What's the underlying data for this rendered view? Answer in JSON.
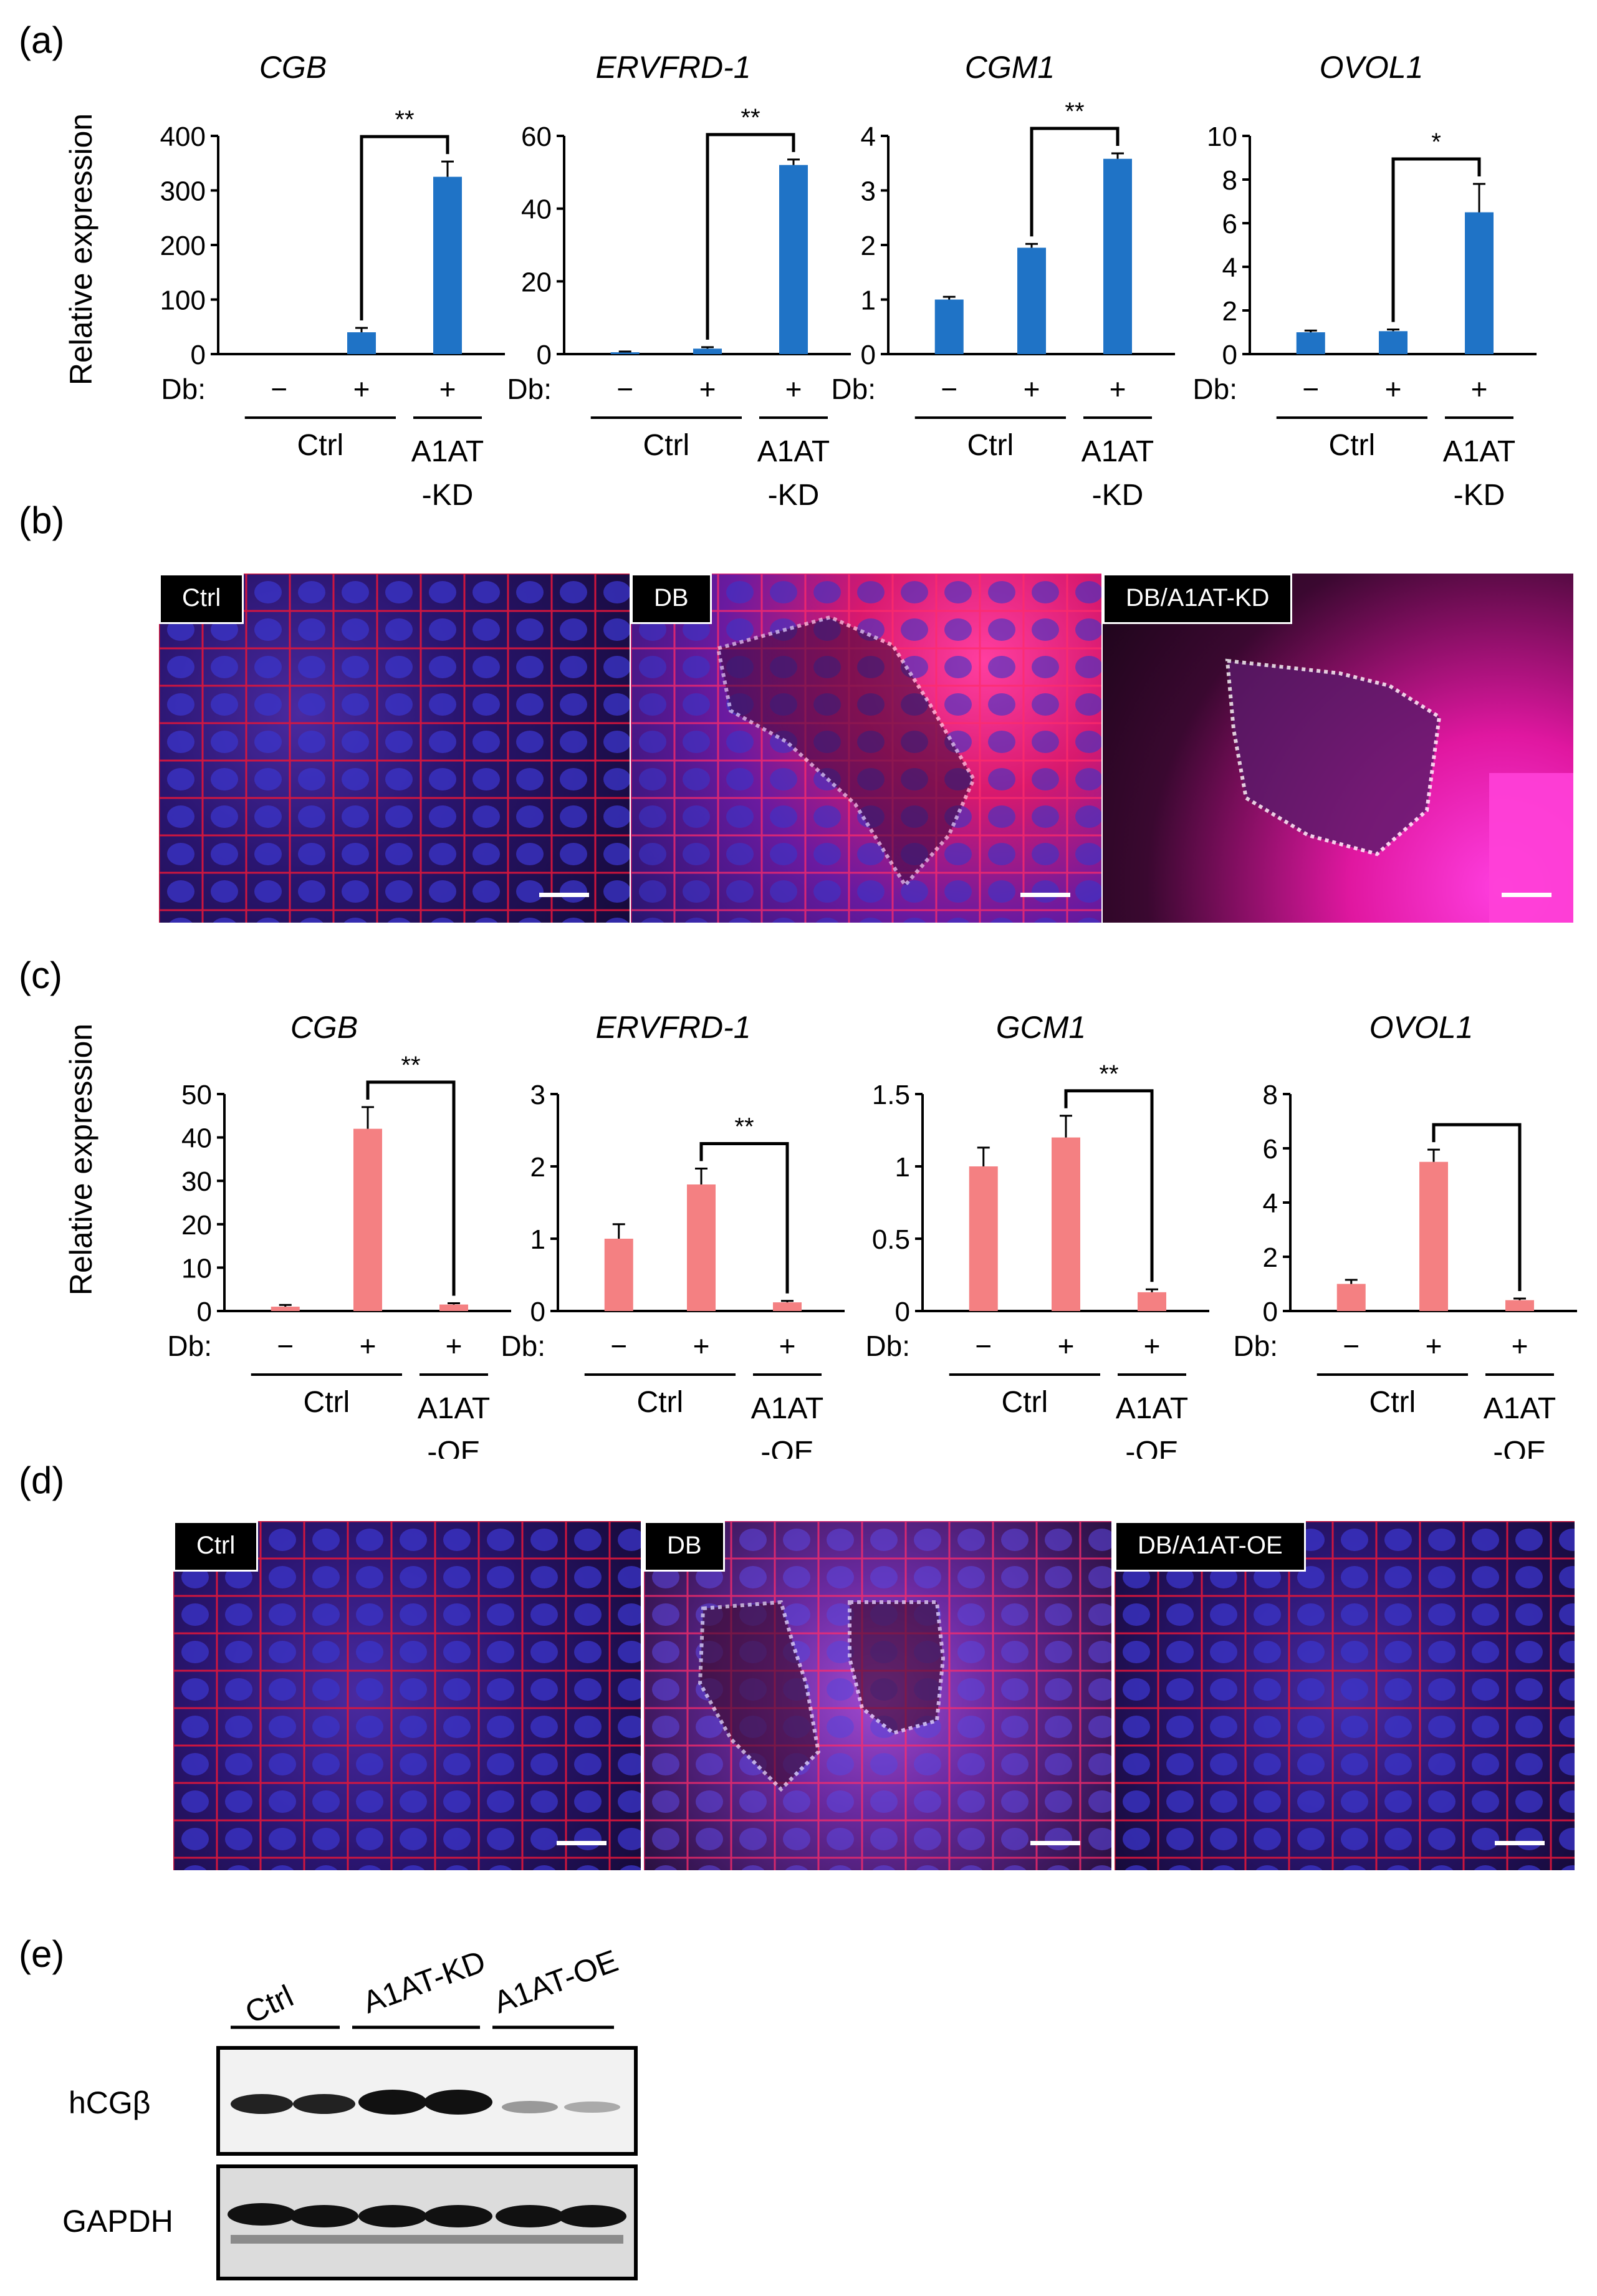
{
  "figure": {
    "panels": {
      "a": "(a)",
      "b": "(b)",
      "c": "(c)",
      "d": "(d)",
      "e": "(e)"
    },
    "a": {
      "ylabel": "Relative expression",
      "db_label": "Db:",
      "conditions": [
        "−",
        "+",
        "+"
      ],
      "group1": "Ctrl",
      "group2_line1": "A1AT",
      "group2_line2": "-KD",
      "bar_color": "#1f73c6"
    },
    "b": {
      "labels": [
        "Ctrl",
        "DB",
        "DB/A1AT-KD"
      ]
    },
    "c": {
      "ylabel": "Relative expression",
      "db_label": "Db:",
      "conditions": [
        "−",
        "+",
        "+"
      ],
      "group1": "Ctrl",
      "group2_line1": "A1AT",
      "group2_line2": "-OE",
      "bar_color": "#f48082"
    },
    "d": {
      "labels": [
        "Ctrl",
        "DB",
        "DB/A1AT-OE"
      ]
    },
    "e": {
      "lanes": [
        "Ctrl",
        "A1AT-KD",
        "A1AT-OE"
      ],
      "rows": [
        "hCGβ",
        "GAPDH"
      ]
    }
  },
  "chart_data": [
    {
      "type": "bar",
      "panel": "a",
      "title": "CGB",
      "categories": [
        "−",
        "+",
        "+"
      ],
      "values": [
        0,
        40,
        325
      ],
      "errors": [
        0,
        8,
        28
      ],
      "ylim": [
        0,
        400
      ],
      "yticks": [
        0,
        100,
        200,
        300,
        400
      ],
      "significance": "**",
      "ylabel": "Relative expression"
    },
    {
      "type": "bar",
      "panel": "a",
      "title": "ERVFRD-1",
      "categories": [
        "−",
        "+",
        "+"
      ],
      "values": [
        0.5,
        1.5,
        52
      ],
      "errors": [
        0.2,
        0.4,
        1.5
      ],
      "ylim": [
        0,
        60
      ],
      "yticks": [
        0,
        20,
        40,
        60
      ],
      "significance": "**"
    },
    {
      "type": "bar",
      "panel": "a",
      "title": "CGM1",
      "categories": [
        "−",
        "+",
        "+"
      ],
      "values": [
        1.0,
        1.95,
        3.58
      ],
      "errors": [
        0.05,
        0.07,
        0.1
      ],
      "ylim": [
        0,
        4
      ],
      "yticks": [
        0,
        1,
        2,
        3,
        4
      ],
      "significance": "**"
    },
    {
      "type": "bar",
      "panel": "a",
      "title": "OVOL1",
      "categories": [
        "−",
        "+",
        "+"
      ],
      "values": [
        1.0,
        1.05,
        6.5
      ],
      "errors": [
        0.08,
        0.08,
        1.3
      ],
      "ylim": [
        0,
        10
      ],
      "yticks": [
        0,
        2,
        4,
        6,
        8,
        10
      ],
      "significance": "*"
    },
    {
      "type": "bar",
      "panel": "c",
      "title": "CGB",
      "categories": [
        "−",
        "+",
        "+"
      ],
      "values": [
        1.0,
        42,
        1.5
      ],
      "errors": [
        0.4,
        5,
        0.3
      ],
      "ylim": [
        0,
        50
      ],
      "yticks": [
        0,
        10,
        20,
        30,
        40,
        50
      ],
      "significance": "**",
      "ylabel": "Relative expression"
    },
    {
      "type": "bar",
      "panel": "c",
      "title": "ERVFRD-1",
      "categories": [
        "−",
        "+",
        "+"
      ],
      "values": [
        1.0,
        1.75,
        0.12
      ],
      "errors": [
        0.2,
        0.22,
        0.02
      ],
      "ylim": [
        0,
        3
      ],
      "yticks": [
        0,
        1,
        2,
        3
      ],
      "significance": "**"
    },
    {
      "type": "bar",
      "panel": "c",
      "title": "GCM1",
      "categories": [
        "−",
        "+",
        "+"
      ],
      "values": [
        1.0,
        1.2,
        0.13
      ],
      "errors": [
        0.13,
        0.15,
        0.02
      ],
      "ylim": [
        0,
        1.5
      ],
      "yticks": [
        0,
        0.5,
        1,
        1.5
      ],
      "significance": "**"
    },
    {
      "type": "bar",
      "panel": "c",
      "title": "OVOL1",
      "categories": [
        "−",
        "+",
        "+"
      ],
      "values": [
        1.0,
        5.5,
        0.4
      ],
      "errors": [
        0.15,
        0.45,
        0.06
      ],
      "ylim": [
        0,
        8
      ],
      "yticks": [
        0,
        2,
        4,
        6,
        8
      ],
      "significance": ""
    }
  ]
}
